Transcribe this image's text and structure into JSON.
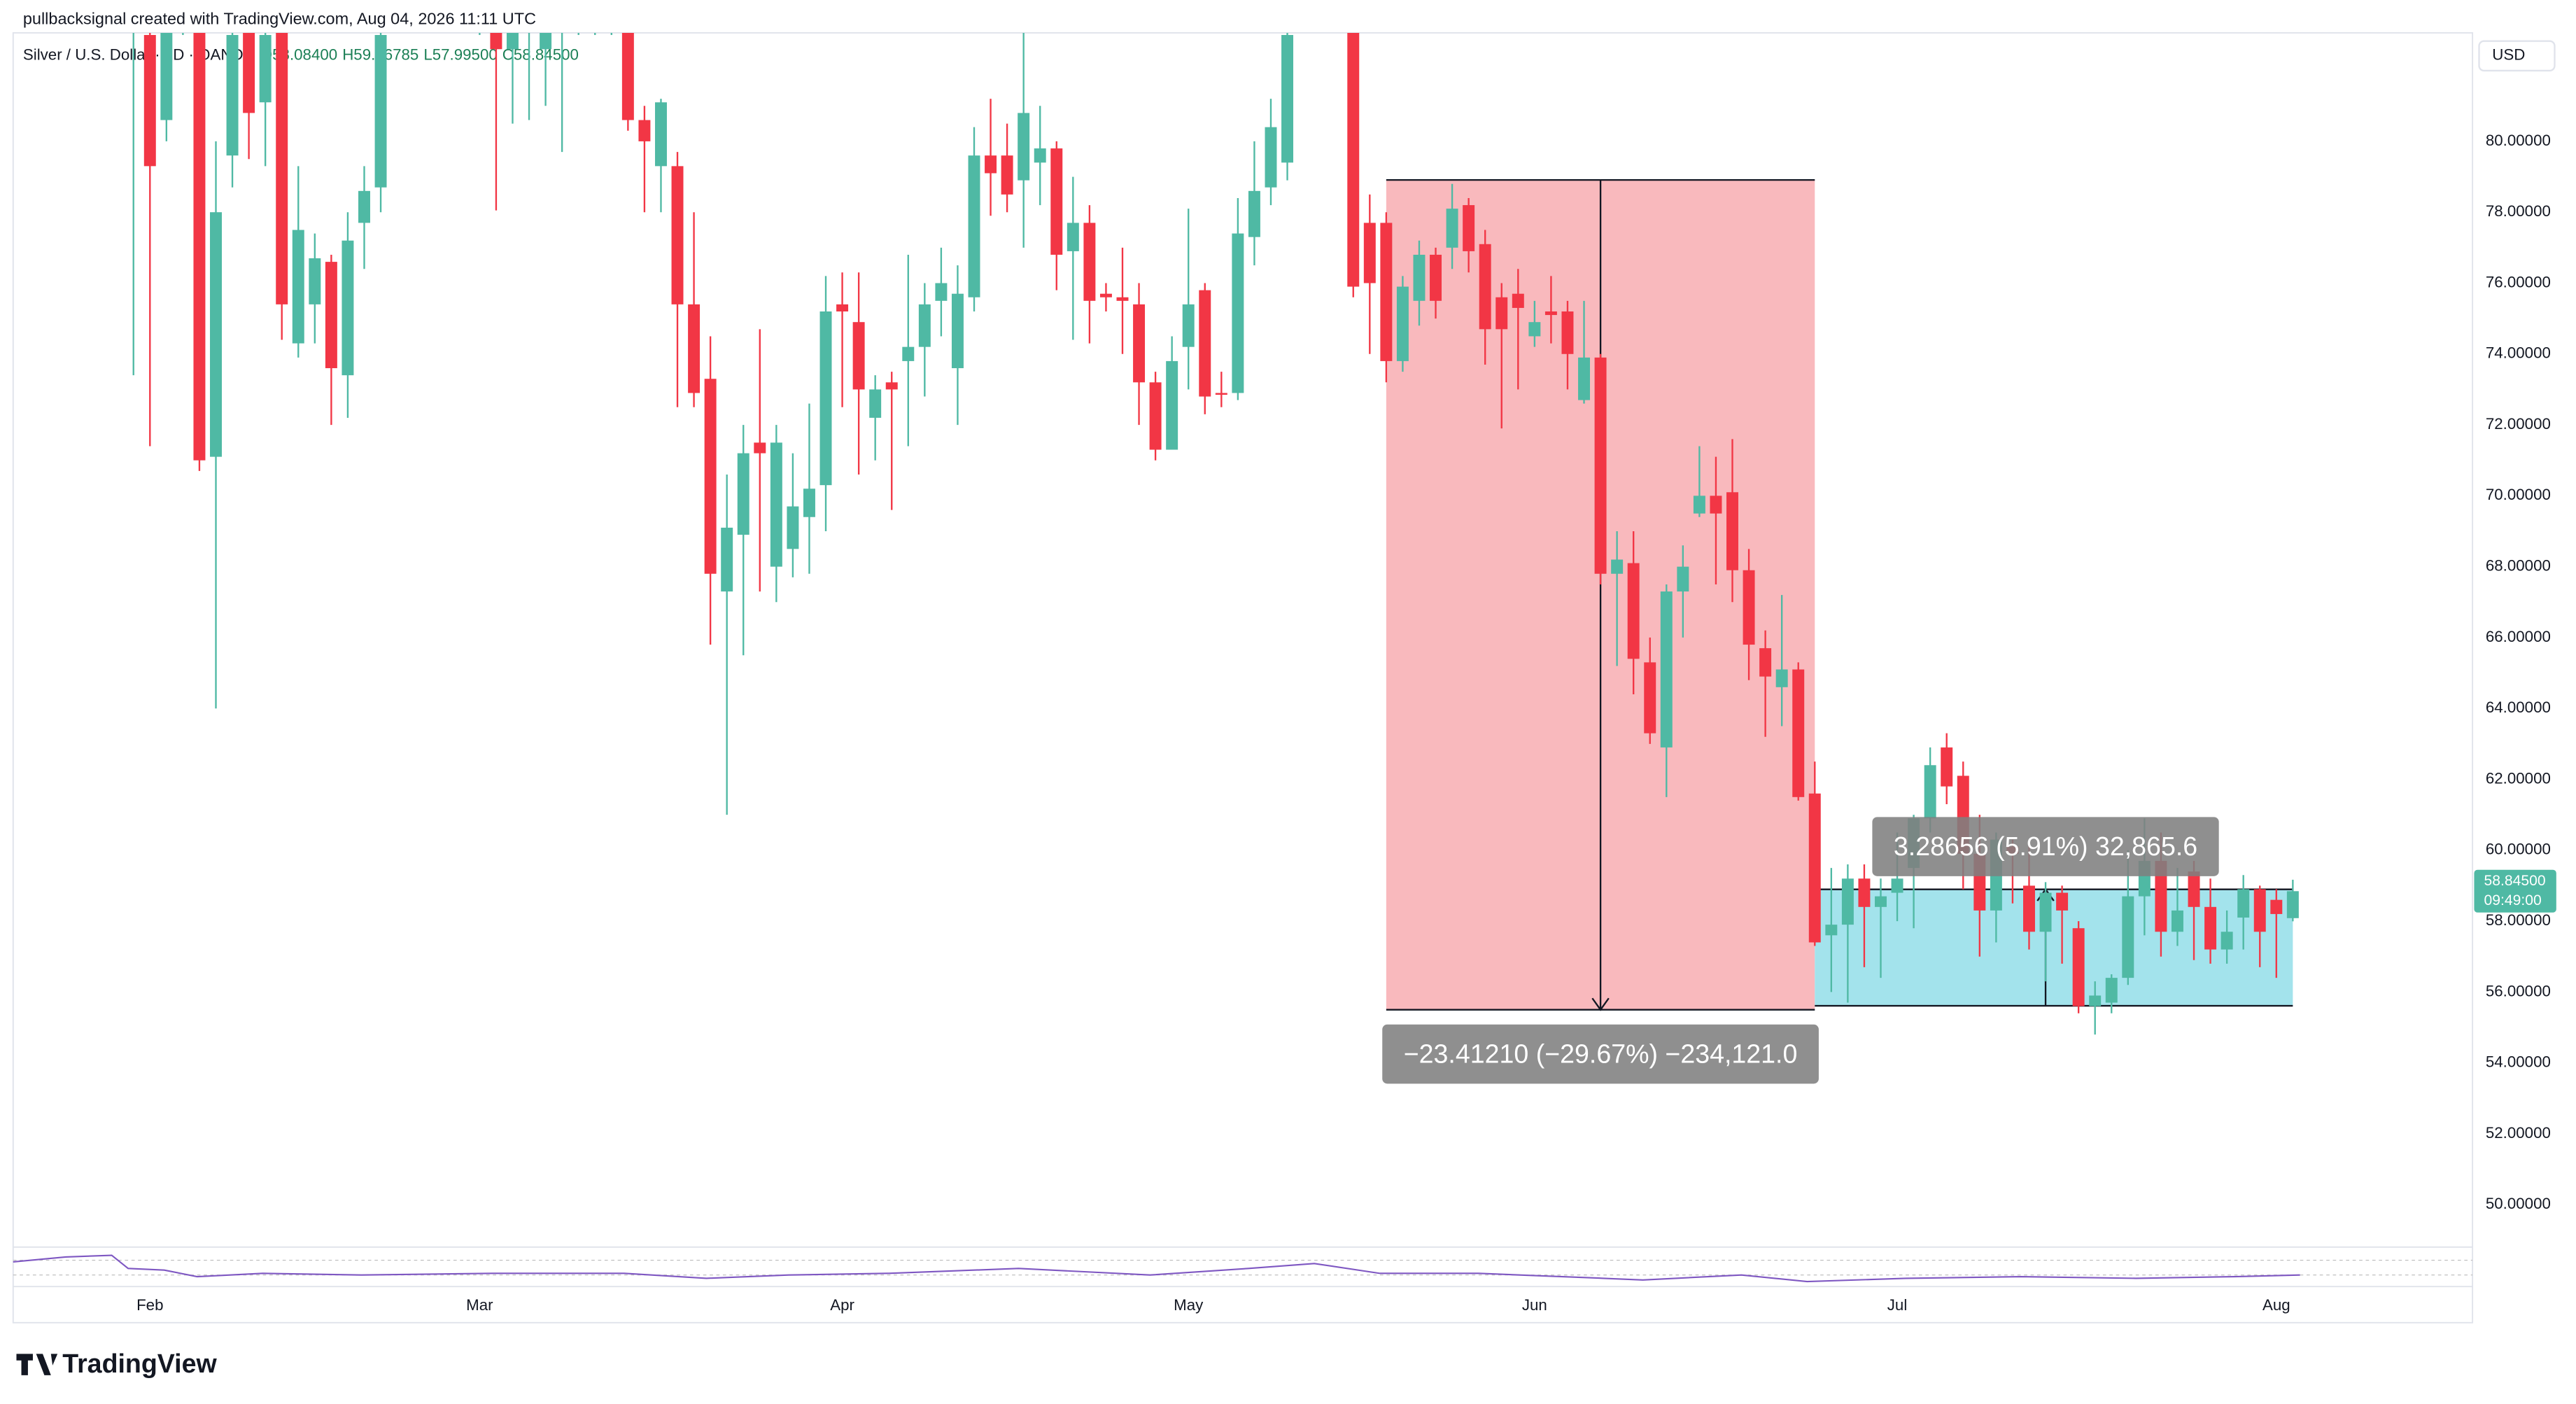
{
  "header": "pullbacksignal created with TradingView.com, Aug 04, 2026 11:11 UTC",
  "logo": "TradingView",
  "chart_data": {
    "type": "candlestick",
    "title": "Silver / U.S. Dollar · 1D · OANDA",
    "ohlc_legend": [
      "O58.08400",
      "H59.16785",
      "L57.99500",
      "C58.84500"
    ],
    "currency": "USD",
    "up_color": "#4fb9a4",
    "down_color": "#f23645",
    "open": [
      84,
      83.0,
      80.6,
      84,
      84,
      71.1,
      79.6,
      84,
      81.1,
      84,
      74.3,
      75.4,
      76.6,
      73.4,
      77.7,
      78.7,
      84,
      84,
      84,
      84,
      84,
      84,
      84,
      82.6,
      84,
      82.6,
      84,
      84,
      84,
      84,
      84,
      80.6,
      79.3,
      79.3,
      75.4,
      73.3,
      67.3,
      68.9,
      71.5,
      68.0,
      68.5,
      69.4,
      70.3,
      75.4,
      74.9,
      72.2,
      73.2,
      73.8,
      74.2,
      75.5,
      73.6,
      75.6,
      79.6,
      79.6,
      78.9,
      79.4,
      79.8,
      76.9,
      77.7,
      75.7,
      75.6,
      75.4,
      73.2,
      71.3,
      74.2,
      75.8,
      72.9,
      72.9,
      77.3,
      78.7,
      79.4,
      84,
      84,
      84,
      84,
      77.7,
      77.7,
      73.8,
      75.5,
      76.8,
      77.0,
      78.2,
      77.1,
      75.6,
      75.7,
      74.5,
      75.2,
      75.2,
      72.7,
      73.9,
      67.8,
      68.1,
      65.3,
      62.9,
      67.3,
      69.5,
      70.0,
      70.1,
      67.9,
      65.7,
      64.6,
      65.1,
      61.6,
      57.6,
      57.9,
      59.2,
      58.4,
      58.8,
      59.5,
      60.9,
      62.9,
      62.1,
      59.9,
      58.3,
      60.1,
      59.0,
      57.7,
      58.8,
      57.8,
      55.6,
      55.7,
      56.4,
      58.7,
      59.7,
      57.7,
      59.4,
      58.4,
      57.2,
      58.1,
      58.9,
      58.6,
      58.084
    ],
    "high": [
      86,
      84,
      84.5,
      87,
      85,
      80,
      84,
      85,
      84,
      85,
      79.3,
      77.4,
      76.8,
      78.0,
      79.3,
      84,
      86,
      86,
      86,
      87,
      86,
      86,
      85,
      85,
      86,
      85,
      86,
      86,
      86,
      86,
      85,
      81,
      81.2,
      79.7,
      78.0,
      74.5,
      70.6,
      72.0,
      74.7,
      72.0,
      71.2,
      72.6,
      76.2,
      76.3,
      76.3,
      73.4,
      73.5,
      76.8,
      76.0,
      77.0,
      76.5,
      80.4,
      81.2,
      80.5,
      84,
      81.0,
      80.0,
      79.0,
      78.2,
      76.0,
      77,
      76.0,
      73.5,
      74.5,
      78.1,
      76.0,
      73.5,
      78.4,
      80.0,
      81.2,
      84,
      86,
      86,
      86,
      85,
      78.5,
      78.0,
      76.2,
      77.2,
      77.0,
      78.8,
      78.4,
      77.5,
      76.0,
      76.4,
      75.5,
      76.2,
      75.5,
      75.5,
      74.0,
      69.0,
      69.0,
      66.0,
      67.5,
      68.6,
      71.4,
      71.1,
      71.6,
      68.5,
      66.2,
      67.2,
      65.3,
      62.5,
      59.5,
      59.6,
      59.6,
      59.2,
      60.5,
      61.0,
      62.9,
      63.3,
      62.5,
      61.0,
      60.5,
      60.3,
      60.3,
      59.1,
      59.0,
      58.0,
      56.3,
      56.5,
      60.0,
      60.9,
      60.5,
      59.5,
      59.7,
      59.2,
      58.3,
      59.3,
      59.0,
      58.9,
      59.16785
    ],
    "low": [
      73.4,
      71.4,
      80,
      83,
      70.7,
      64.0,
      78.7,
      79.5,
      79.3,
      74.4,
      73.9,
      74.3,
      72.0,
      72.2,
      76.4,
      78.0,
      83.5,
      84,
      83.5,
      84,
      83.5,
      83,
      78.05,
      80.5,
      80.6,
      81,
      79.7,
      83,
      83,
      83,
      80.3,
      78.0,
      78.0,
      72.5,
      72.5,
      65.8,
      61.0,
      65.5,
      67.3,
      67.0,
      67.7,
      67.8,
      69.0,
      72.5,
      70.6,
      71.0,
      69.6,
      71.4,
      72.8,
      74.5,
      72.0,
      75.2,
      77.9,
      78.0,
      77.0,
      78.2,
      75.8,
      74.4,
      74.3,
      75.2,
      74.0,
      72.0,
      71.0,
      71.3,
      73.0,
      72.3,
      72.5,
      72.7,
      76.5,
      78.2,
      78.9,
      84,
      84,
      84,
      75.6,
      74.0,
      73.2,
      73.5,
      74.8,
      75.0,
      76.4,
      76.3,
      73.7,
      71.9,
      73.0,
      74.2,
      74.3,
      73.0,
      72.6,
      67.5,
      65.2,
      64.4,
      63.0,
      61.5,
      66.0,
      69.4,
      67.5,
      67.0,
      64.8,
      63.2,
      63.5,
      61.4,
      57.3,
      56.0,
      55.7,
      56.7,
      56.4,
      58.0,
      57.8,
      60.5,
      61.3,
      58.9,
      57.0,
      57.4,
      58.5,
      57.2,
      56.3,
      56.8,
      55.4,
      54.8,
      55.4,
      56.2,
      57.6,
      57.0,
      57.3,
      56.9,
      56.8,
      56.8,
      57.2,
      56.7,
      56.4,
      57.995
    ],
    "close": [
      85,
      79.3,
      84,
      86,
      71.0,
      78.0,
      83,
      80.8,
      83,
      75.4,
      77.5,
      76.7,
      73.6,
      77.2,
      78.6,
      83,
      85,
      85.5,
      85,
      86,
      85,
      84.5,
      82.6,
      84,
      85,
      84,
      85,
      85,
      85,
      85,
      80.6,
      80.0,
      81.1,
      75.4,
      72.9,
      67.8,
      69.1,
      71.2,
      71.2,
      71.5,
      69.7,
      70.2,
      75.2,
      75.2,
      73.0,
      73.0,
      73.0,
      74.2,
      75.4,
      76.0,
      75.7,
      79.6,
      79.1,
      78.5,
      80.8,
      79.8,
      76.8,
      77.7,
      75.5,
      75.6,
      75.5,
      73.2,
      71.3,
      73.8,
      75.4,
      72.8,
      72.85,
      77.4,
      78.6,
      80.4,
      83,
      85,
      85,
      85,
      75.9,
      76.0,
      73.8,
      75.9,
      76.8,
      75.5,
      78.1,
      76.9,
      74.7,
      74.7,
      75.3,
      74.9,
      75.1,
      74.0,
      73.9,
      67.8,
      68.2,
      65.4,
      63.3,
      67.3,
      68.0,
      70.0,
      69.5,
      67.9,
      65.8,
      64.9,
      65.1,
      61.5,
      57.4,
      57.9,
      59.2,
      58.4,
      58.7,
      59.2,
      60.9,
      62.4,
      61.8,
      59.9,
      58.3,
      60.3,
      59.9,
      57.7,
      58.8,
      58.3,
      55.6,
      55.9,
      56.4,
      58.7,
      59.7,
      57.7,
      58.3,
      58.4,
      57.2,
      57.7,
      58.9,
      57.7,
      58.2,
      58.845
    ],
    "xlim": [
      -7.3,
      141.9
    ],
    "xticks": [
      {
        "value": 1,
        "label": "Feb"
      },
      {
        "value": 21,
        "label": "Mar"
      },
      {
        "value": 43,
        "label": "Apr"
      },
      {
        "value": 64,
        "label": "May"
      },
      {
        "value": 85,
        "label": "Jun"
      },
      {
        "value": 107,
        "label": "Jul"
      },
      {
        "value": 130,
        "label": "Aug"
      }
    ],
    "ylim": [
      48.85,
      83.06
    ],
    "yticks": [
      {
        "value": 50,
        "label": "50.00000"
      },
      {
        "value": 52,
        "label": "52.00000"
      },
      {
        "value": 54,
        "label": "54.00000"
      },
      {
        "value": 56,
        "label": "56.00000"
      },
      {
        "value": 58,
        "label": "58.00000"
      },
      {
        "value": 60,
        "label": "60.00000"
      },
      {
        "value": 62,
        "label": "62.00000"
      },
      {
        "value": 64,
        "label": "64.00000"
      },
      {
        "value": 66,
        "label": "66.00000"
      },
      {
        "value": 68,
        "label": "68.00000"
      },
      {
        "value": 70,
        "label": "70.00000"
      },
      {
        "value": 72,
        "label": "72.00000"
      },
      {
        "value": 74,
        "label": "74.00000"
      },
      {
        "value": 76,
        "label": "76.00000"
      },
      {
        "value": 78,
        "label": "78.00000"
      },
      {
        "value": 80,
        "label": "80.00000"
      }
    ],
    "grid": false,
    "last_price": {
      "value": 58.845,
      "label": "58.84500"
    },
    "countdown": "09:49:00",
    "measurements": [
      {
        "label": "−23.41210 (−29.67%) −234,121.0",
        "top": 78.91,
        "bottom": 55.5,
        "start": 76,
        "end": 102,
        "arrow": 89,
        "direction": "down",
        "color": "#f9b9bd"
      },
      {
        "label": "3.28656 (5.91%) 32,865.6",
        "top": 58.897,
        "bottom": 55.61,
        "start": 102,
        "end": 131,
        "arrow": 116,
        "direction": "up",
        "color": "#a3e3ec"
      }
    ]
  }
}
